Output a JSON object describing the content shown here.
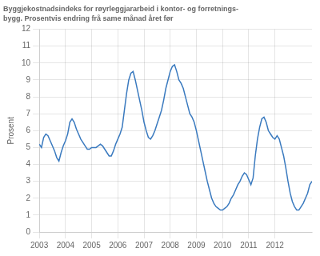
{
  "chart_data": {
    "type": "line",
    "title": "Byggjekostnadsindeks for røyrleggjararbeid i kontor- og forretnings-",
    "subtitle": "bygg. Prosentvis endring frå same månad året før",
    "ylabel": "Prosent",
    "color": "#3a7abf",
    "grid": true,
    "ylim": [
      0,
      12
    ],
    "yticks": [
      0,
      1,
      2,
      3,
      4,
      5,
      6,
      7,
      8,
      9,
      10,
      11,
      12
    ],
    "categories": [
      "2003",
      null,
      null,
      null,
      null,
      null,
      null,
      null,
      null,
      null,
      null,
      null,
      "2004",
      null,
      null,
      null,
      null,
      null,
      null,
      null,
      null,
      null,
      null,
      null,
      "2005",
      null,
      null,
      null,
      null,
      null,
      null,
      null,
      null,
      null,
      null,
      null,
      "2006",
      null,
      null,
      null,
      null,
      null,
      null,
      null,
      null,
      null,
      null,
      null,
      "2007",
      null,
      null,
      null,
      null,
      null,
      null,
      null,
      null,
      null,
      null,
      null,
      "2008",
      null,
      null,
      null,
      null,
      null,
      null,
      null,
      null,
      null,
      null,
      null,
      "2009",
      null,
      null,
      null,
      null,
      null,
      null,
      null,
      null,
      null,
      null,
      null,
      "2010",
      null,
      null,
      null,
      null,
      null,
      null,
      null,
      null,
      null,
      null,
      null,
      "2011",
      null,
      null,
      null,
      null,
      null,
      null,
      null,
      null,
      null,
      null,
      null,
      "2012",
      null,
      null,
      null,
      null,
      null,
      null,
      null,
      null,
      null,
      null,
      null,
      null,
      null,
      null,
      null,
      null,
      null
    ],
    "values": [
      5.2,
      5.0,
      5.6,
      5.8,
      5.7,
      5.4,
      5.1,
      4.8,
      4.4,
      4.2,
      4.7,
      5.1,
      5.4,
      5.8,
      6.5,
      6.7,
      6.5,
      6.1,
      5.8,
      5.5,
      5.3,
      5.1,
      4.9,
      4.9,
      5.0,
      5.0,
      5.0,
      5.1,
      5.2,
      5.1,
      4.9,
      4.7,
      4.5,
      4.5,
      4.8,
      5.2,
      5.5,
      5.8,
      6.2,
      7.2,
      8.2,
      9.0,
      9.4,
      9.5,
      9.0,
      8.4,
      7.8,
      7.2,
      6.5,
      6.0,
      5.6,
      5.5,
      5.7,
      6.0,
      6.4,
      6.8,
      7.2,
      7.8,
      8.5,
      9.0,
      9.5,
      9.8,
      9.9,
      9.5,
      9.0,
      8.8,
      8.5,
      8.0,
      7.5,
      7.0,
      6.8,
      6.5,
      6.0,
      5.4,
      4.8,
      4.2,
      3.6,
      3.0,
      2.5,
      2.0,
      1.7,
      1.5,
      1.4,
      1.3,
      1.3,
      1.4,
      1.5,
      1.7,
      2.0,
      2.2,
      2.5,
      2.8,
      3.0,
      3.3,
      3.5,
      3.4,
      3.1,
      2.8,
      3.2,
      4.5,
      5.5,
      6.2,
      6.7,
      6.8,
      6.5,
      6.0,
      5.8,
      5.6,
      5.5,
      5.7,
      5.5,
      5.0,
      4.5,
      3.8,
      3.0,
      2.3,
      1.8,
      1.5,
      1.3,
      1.3,
      1.5,
      1.7,
      2.0,
      2.3,
      2.8,
      3.0
    ]
  }
}
